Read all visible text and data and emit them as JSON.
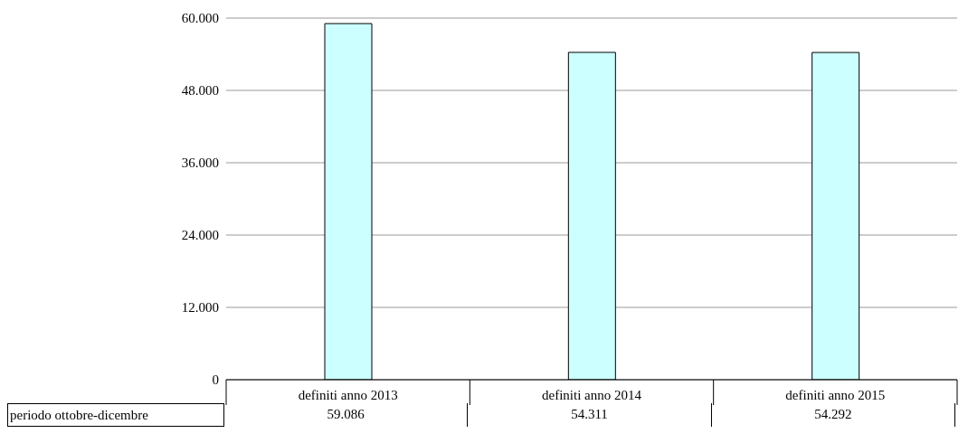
{
  "chart_data": {
    "type": "bar",
    "categories": [
      "definiti anno 2013",
      "definiti anno 2014",
      "definiti anno 2015"
    ],
    "series": [
      {
        "name": "periodo ottobre-dicembre",
        "color": "#ccffff",
        "values": [
          59086,
          54311,
          54292
        ],
        "value_labels": [
          "59.086",
          "54.311",
          "54.292"
        ]
      }
    ],
    "ylim": [
      0,
      60000
    ],
    "yticks": [
      {
        "value": 0,
        "label": "0"
      },
      {
        "value": 12000,
        "label": "12.000"
      },
      {
        "value": 24000,
        "label": "24.000"
      },
      {
        "value": 36000,
        "label": "36.000"
      },
      {
        "value": 48000,
        "label": "48.000"
      },
      {
        "value": 60000,
        "label": "60.000"
      }
    ],
    "grid": "y"
  }
}
